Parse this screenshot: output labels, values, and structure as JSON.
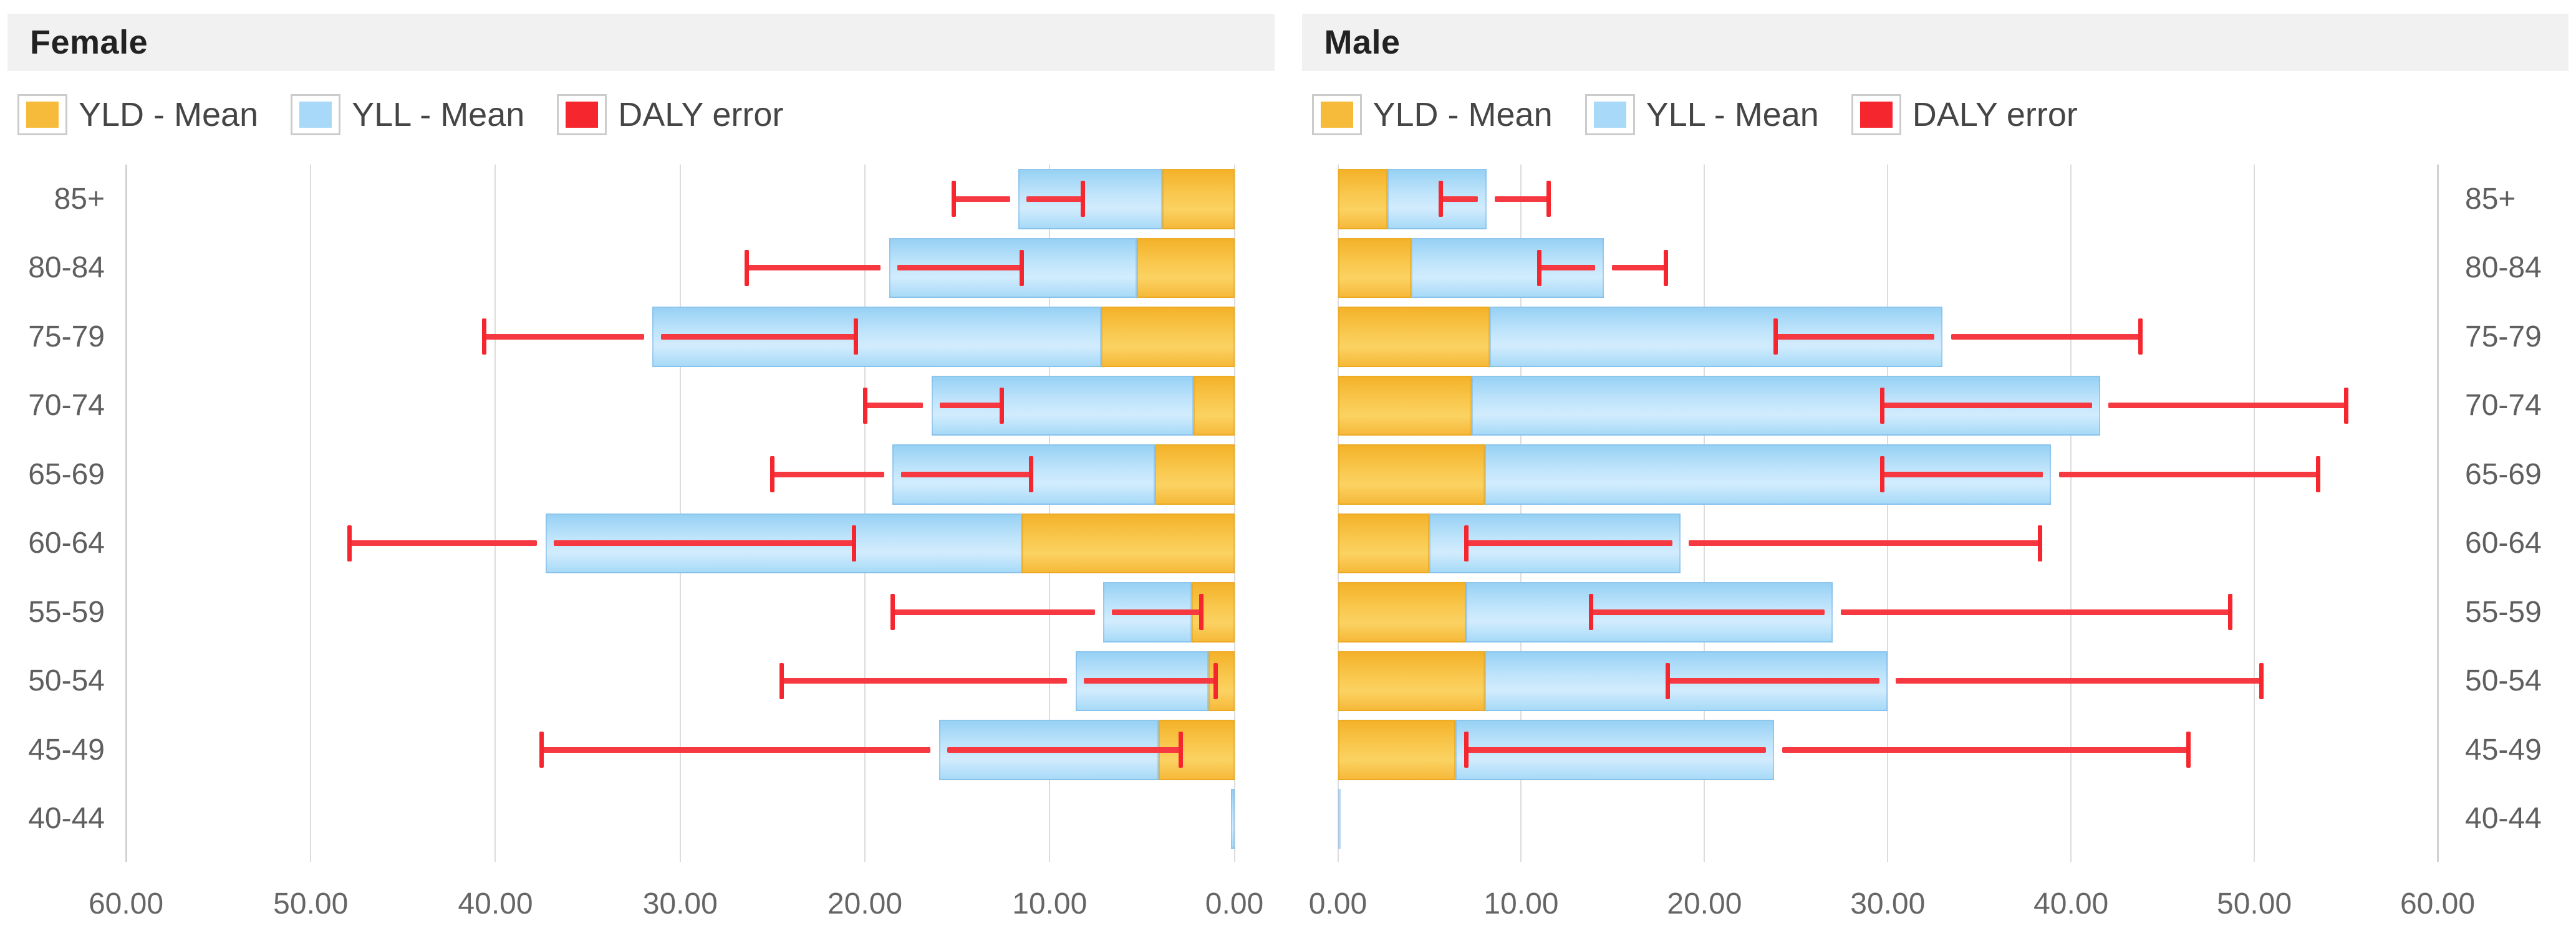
{
  "colors": {
    "yld": "#f7bb3b",
    "yll": "#a9d9f8",
    "error": "#f5262e",
    "grid": "#dcdcdc",
    "header_bg": "#f1f1f2",
    "title_text": "#222222",
    "axis_text": "#5f5f5f"
  },
  "legend": {
    "yld": "YLD - Mean",
    "yll": "YLL - Mean",
    "error": "DALY error"
  },
  "panels": [
    {
      "id": "female",
      "title": "Female",
      "anchor": "right",
      "xticks": [
        "60.00",
        "50.00",
        "40.00",
        "30.00",
        "20.00",
        "10.00",
        "0.00"
      ]
    },
    {
      "id": "male",
      "title": "Male",
      "anchor": "left",
      "xticks": [
        "0.00",
        "10.00",
        "20.00",
        "30.00",
        "40.00",
        "50.00",
        "60.00"
      ]
    }
  ],
  "chart_data": [
    {
      "type": "bar",
      "orientation": "horizontal-stacked",
      "title": "Female",
      "categories": [
        "85+",
        "80-84",
        "75-79",
        "70-74",
        "65-69",
        "60-64",
        "55-59",
        "50-54",
        "45-49",
        "40-44"
      ],
      "series": [
        {
          "name": "YLD - Mean",
          "values": [
            3.9,
            5.3,
            7.2,
            2.2,
            4.3,
            11.5,
            2.3,
            1.4,
            4.1,
            0
          ]
        },
        {
          "name": "YLL - Mean",
          "values": [
            7.8,
            13.4,
            24.3,
            14.2,
            14.2,
            25.8,
            4.8,
            7.2,
            11.9,
            0.2
          ]
        }
      ],
      "daly_error": {
        "low": [
          8.2,
          11.5,
          20.5,
          12.6,
          11.0,
          20.6,
          1.8,
          1.0,
          2.9,
          null
        ],
        "high": [
          15.2,
          26.4,
          40.6,
          20.0,
          25.0,
          47.9,
          18.5,
          24.5,
          37.5,
          null
        ]
      },
      "xlim": [
        0,
        60
      ],
      "x_reversed": true,
      "xticks": [
        "60.00",
        "50.00",
        "40.00",
        "30.00",
        "20.00",
        "10.00",
        "0.00"
      ],
      "grid": true,
      "legend_position": "top"
    },
    {
      "type": "bar",
      "orientation": "horizontal-stacked",
      "title": "Male",
      "categories": [
        "85+",
        "80-84",
        "75-79",
        "70-74",
        "65-69",
        "60-64",
        "55-59",
        "50-54",
        "45-49",
        "40-44"
      ],
      "series": [
        {
          "name": "YLD - Mean",
          "values": [
            2.7,
            4.0,
            8.3,
            7.3,
            8.0,
            5.0,
            7.0,
            8.0,
            6.4,
            0
          ]
        },
        {
          "name": "YLL - Mean",
          "values": [
            5.4,
            10.5,
            24.7,
            34.3,
            30.9,
            13.7,
            20.0,
            22.0,
            17.4,
            0.15
          ]
        }
      ],
      "daly_error": {
        "low": [
          5.6,
          11.0,
          23.9,
          29.7,
          29.7,
          7.0,
          13.8,
          18.0,
          7.0,
          null
        ],
        "high": [
          11.5,
          17.9,
          43.8,
          55.0,
          53.5,
          38.3,
          48.7,
          50.4,
          46.4,
          null
        ]
      },
      "xlim": [
        0,
        60
      ],
      "x_reversed": false,
      "xticks": [
        "0.00",
        "10.00",
        "20.00",
        "30.00",
        "40.00",
        "50.00",
        "60.00"
      ],
      "grid": true,
      "legend_position": "top"
    }
  ]
}
